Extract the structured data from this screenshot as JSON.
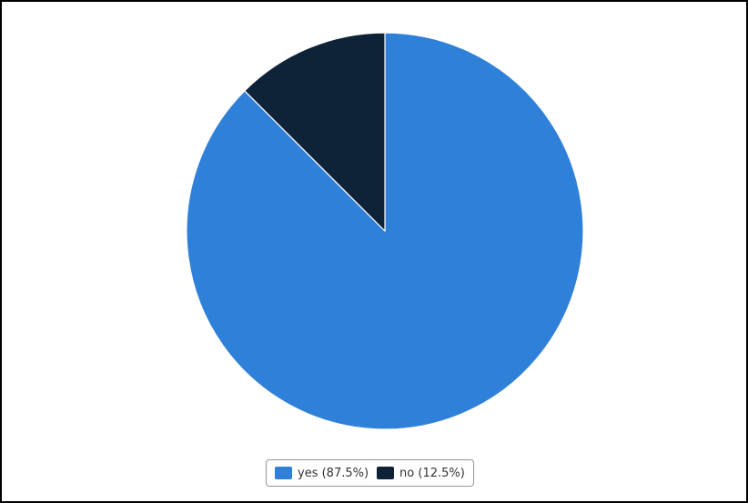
{
  "chart_data": {
    "type": "pie",
    "title": "",
    "slices": [
      {
        "label": "yes",
        "value": 87.5,
        "color": "#2f80d8"
      },
      {
        "label": "no",
        "value": 12.5,
        "color": "#0e2238"
      }
    ],
    "start_angle_deg": 0,
    "direction": "clockwise",
    "slice_border_color": "#ffffff",
    "legend": {
      "placement": "bottom-center",
      "items": [
        {
          "label": "yes (87.5%)",
          "color": "#2f80d8"
        },
        {
          "label": "no (12.5%)",
          "color": "#0e2238"
        }
      ]
    }
  }
}
